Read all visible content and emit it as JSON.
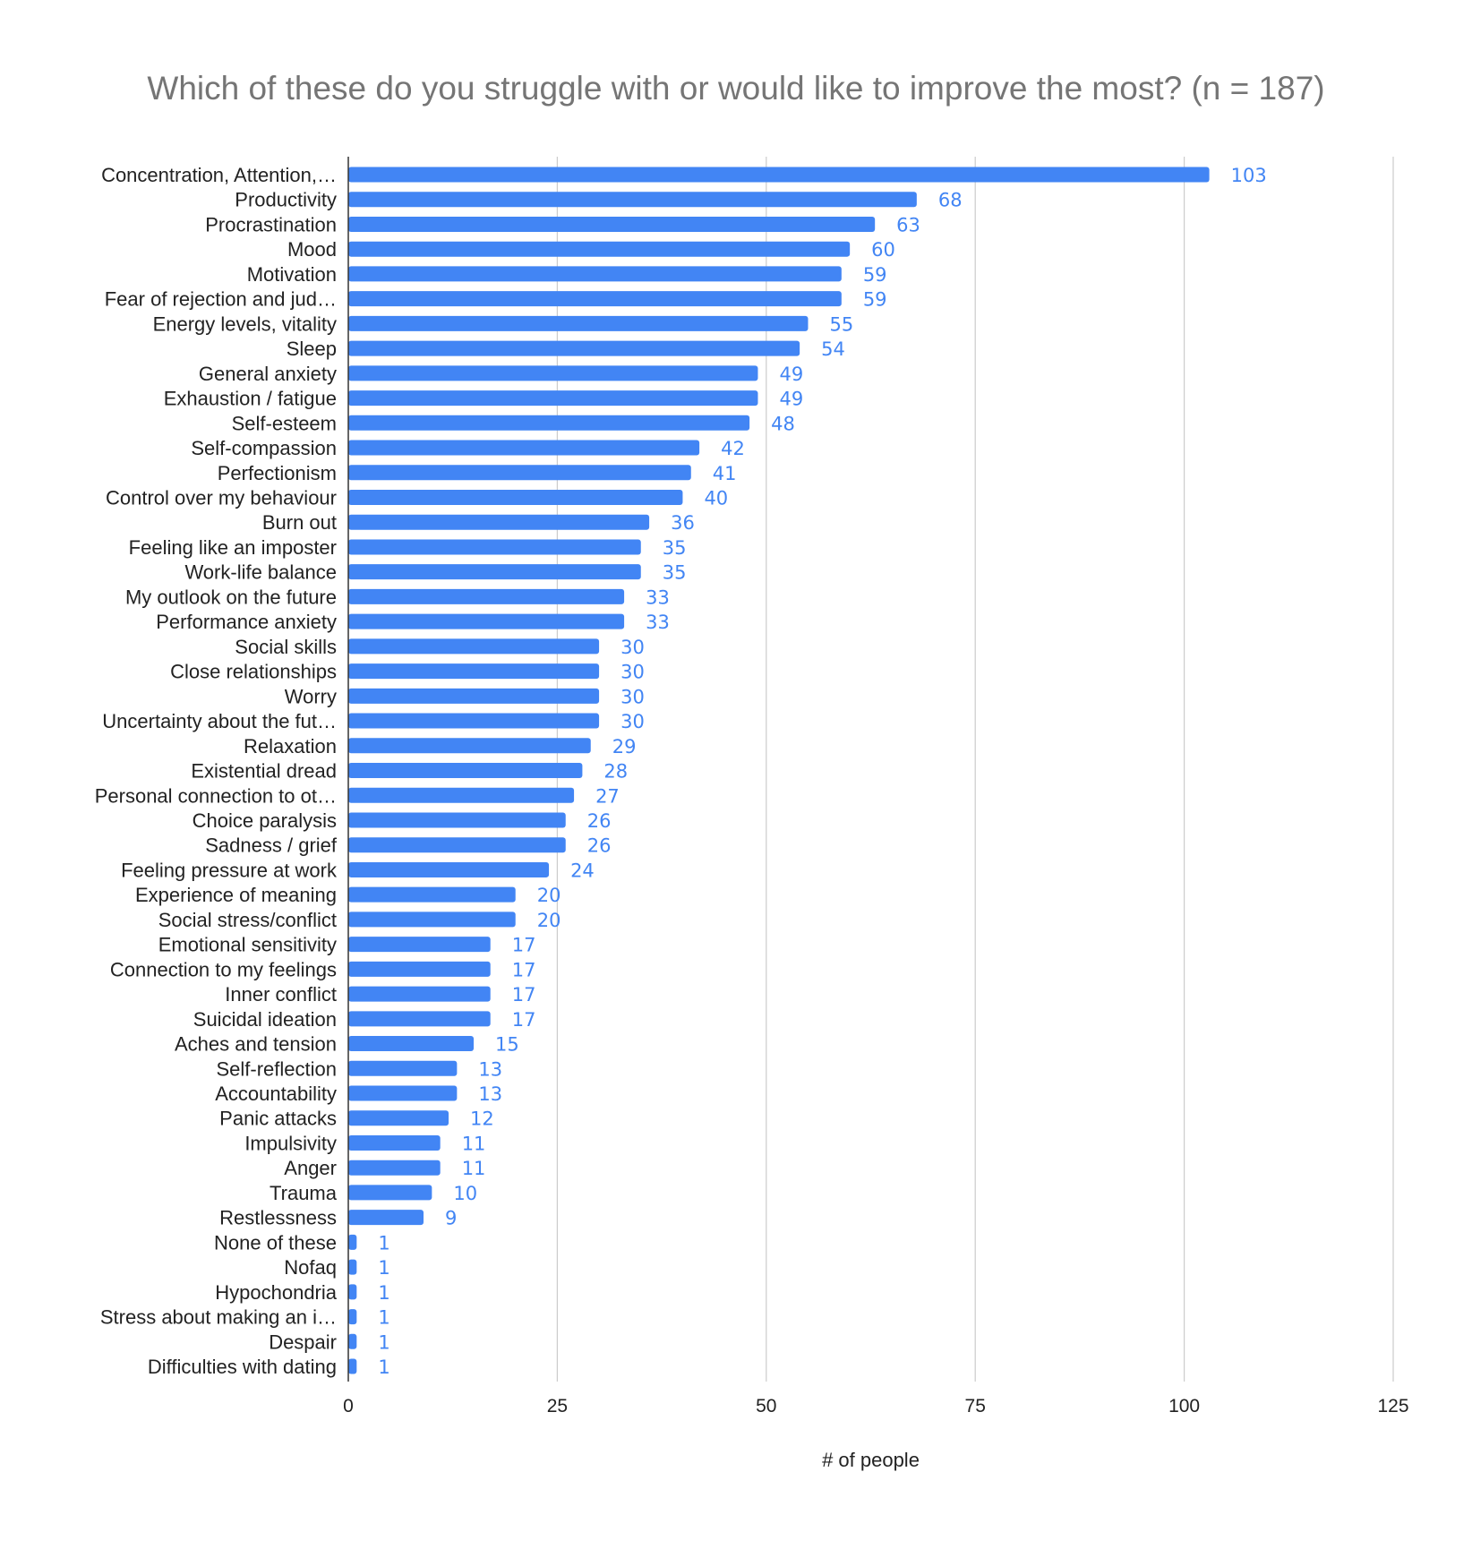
{
  "chart_data": {
    "type": "bar",
    "orientation": "horizontal",
    "title": "Which of these do you struggle with or would like to improve the most? (n = 187)",
    "xlabel": "# of people",
    "ylabel": "",
    "xlim": [
      0,
      125
    ],
    "xticks": [
      0,
      25,
      50,
      75,
      100,
      125
    ],
    "grid": true,
    "legend": "none",
    "bar_color": "#4285f4",
    "label_color": "#4285f4",
    "categories": [
      "Concentration, Attention,…",
      "Productivity",
      "Procrastination",
      "Mood",
      "Motivation",
      "Fear of rejection and jud…",
      "Energy levels, vitality",
      "Sleep",
      "General anxiety",
      "Exhaustion / fatigue",
      "Self-esteem",
      "Self-compassion",
      "Perfectionism",
      "Control over my behaviour",
      "Burn out",
      "Feeling like an imposter",
      "Work-life balance",
      "My outlook on the future",
      "Performance anxiety",
      "Social skills",
      "Close relationships",
      "Worry",
      "Uncertainty about the fut…",
      "Relaxation",
      "Existential dread",
      "Personal connection to ot…",
      "Choice paralysis",
      "Sadness / grief",
      "Feeling pressure at work",
      "Experience of meaning",
      "Social stress/conflict",
      "Emotional sensitivity",
      "Connection to my feelings",
      "Inner conflict",
      "Suicidal ideation",
      "Aches and tension",
      "Self-reflection",
      "Accountability",
      "Panic attacks",
      "Impulsivity",
      "Anger",
      "Trauma",
      "Restlessness",
      "None of these",
      "Nofaq",
      "Hypochondria",
      "Stress about making an i…",
      "Despair",
      "Difficulties with dating"
    ],
    "values": [
      103,
      68,
      63,
      60,
      59,
      59,
      55,
      54,
      49,
      49,
      48,
      42,
      41,
      40,
      36,
      35,
      35,
      33,
      33,
      30,
      30,
      30,
      30,
      29,
      28,
      27,
      26,
      26,
      24,
      20,
      20,
      17,
      17,
      17,
      17,
      15,
      13,
      13,
      12,
      11,
      11,
      10,
      9,
      1,
      1,
      1,
      1,
      1,
      1
    ]
  }
}
